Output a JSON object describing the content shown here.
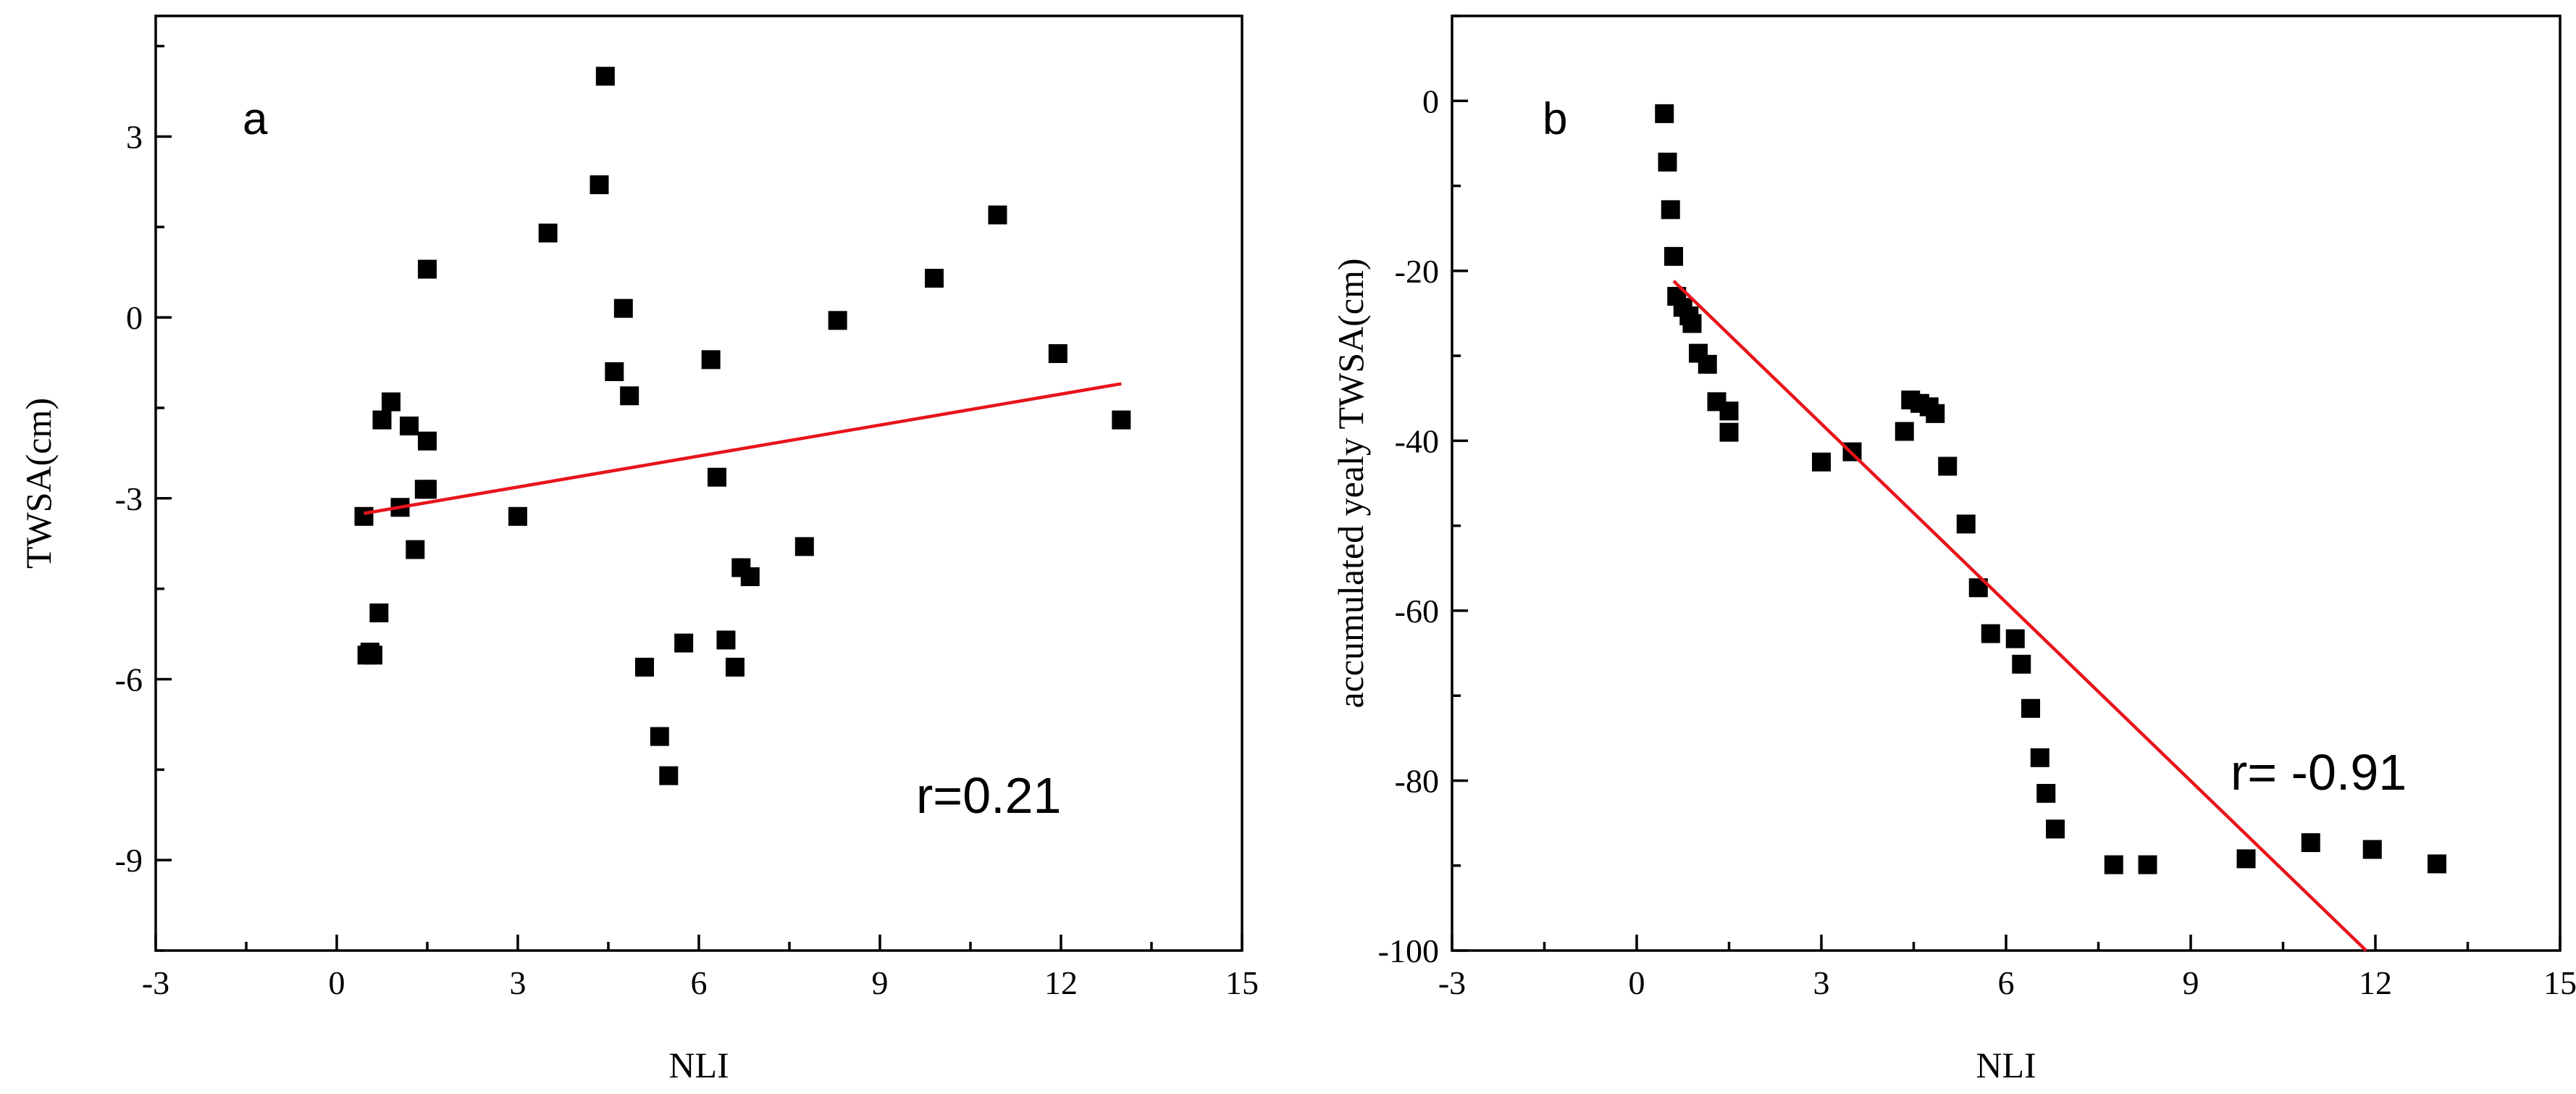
{
  "chart_data": [
    {
      "type": "scatter",
      "panel_label": "a",
      "xlabel": "NLI",
      "ylabel": "TWSA(cm)",
      "xlim": [
        -3,
        15
      ],
      "ylim": [
        -10.5,
        5
      ],
      "xticks": [
        -3,
        0,
        3,
        6,
        9,
        12,
        15
      ],
      "yticks": [
        -9,
        -6,
        -3,
        0,
        3
      ],
      "xtick_labels": [
        "-3",
        "0",
        "3",
        "6",
        "9",
        "12",
        "15"
      ],
      "ytick_labels": [
        "-9",
        "-6",
        "-3",
        "0",
        "3"
      ],
      "annotation": "r=0.21",
      "series": [
        {
          "name": "data",
          "x": [
            0.45,
            0.5,
            0.55,
            0.6,
            0.7,
            0.75,
            0.9,
            1.05,
            1.2,
            1.3,
            1.45,
            1.5,
            1.5,
            1.5,
            3.0,
            3.5,
            4.35,
            4.45,
            4.6,
            4.75,
            4.85,
            5.1,
            5.35,
            5.5,
            5.75,
            6.2,
            6.3,
            6.45,
            6.6,
            6.7,
            6.85,
            7.75,
            8.3,
            9.9,
            10.95,
            11.95,
            13.0
          ],
          "y": [
            -3.3,
            -5.6,
            -5.55,
            -5.6,
            -4.9,
            -1.7,
            -1.4,
            -3.15,
            -1.8,
            -3.85,
            -2.85,
            -2.05,
            0.8,
            -2.85,
            -3.3,
            1.4,
            2.2,
            4.0,
            -0.9,
            0.15,
            -1.3,
            -5.8,
            -6.95,
            -7.6,
            -5.4,
            -0.7,
            -2.65,
            -5.35,
            -5.8,
            -4.15,
            -4.3,
            -3.8,
            -0.05,
            0.65,
            1.7,
            -0.6,
            -1.7
          ]
        }
      ],
      "fit_line": {
        "x": [
          0.45,
          13.0
        ],
        "y": [
          -3.25,
          -1.1
        ]
      }
    },
    {
      "type": "scatter",
      "panel_label": "b",
      "xlabel": "NLI",
      "ylabel": "accumulated yealy TWSA(cm)",
      "xlim": [
        -3,
        15
      ],
      "ylim": [
        -100,
        10
      ],
      "xticks": [
        -3,
        0,
        3,
        6,
        9,
        12,
        15
      ],
      "yticks": [
        -100,
        -80,
        -60,
        -40,
        -20,
        0
      ],
      "xtick_labels": [
        "-3",
        "0",
        "3",
        "6",
        "9",
        "12",
        "15"
      ],
      "ytick_labels": [
        "-100",
        "-80",
        "-60",
        "-40",
        "-20",
        "0"
      ],
      "annotation": "r= -0.91",
      "series": [
        {
          "name": "data",
          "x": [
            0.45,
            0.5,
            0.55,
            0.6,
            0.65,
            0.75,
            0.85,
            0.9,
            1.0,
            1.15,
            1.3,
            1.5,
            1.5,
            3.0,
            3.5,
            4.35,
            4.45,
            4.6,
            4.75,
            4.85,
            5.05,
            5.35,
            5.55,
            5.75,
            6.15,
            6.25,
            6.4,
            6.55,
            6.65,
            6.8,
            7.75,
            8.3,
            9.9,
            10.95,
            11.95,
            13.0
          ],
          "y": [
            -1.5,
            -7.2,
            -12.8,
            -18.3,
            -23.0,
            -24.3,
            -25.3,
            -26.2,
            -29.7,
            -31.0,
            -35.4,
            -36.5,
            -39.0,
            -42.5,
            -41.3,
            -38.9,
            -35.2,
            -35.6,
            -36.0,
            -36.8,
            -43.0,
            -49.8,
            -57.3,
            -62.7,
            -63.3,
            -66.3,
            -71.5,
            -77.3,
            -81.5,
            -85.7,
            -89.9,
            -89.9,
            -89.2,
            -87.3,
            -88.1,
            -89.8
          ]
        }
      ],
      "fit_line": {
        "x": [
          0.6,
          11.85
        ],
        "y": [
          -21.2,
          -100
        ]
      }
    }
  ]
}
